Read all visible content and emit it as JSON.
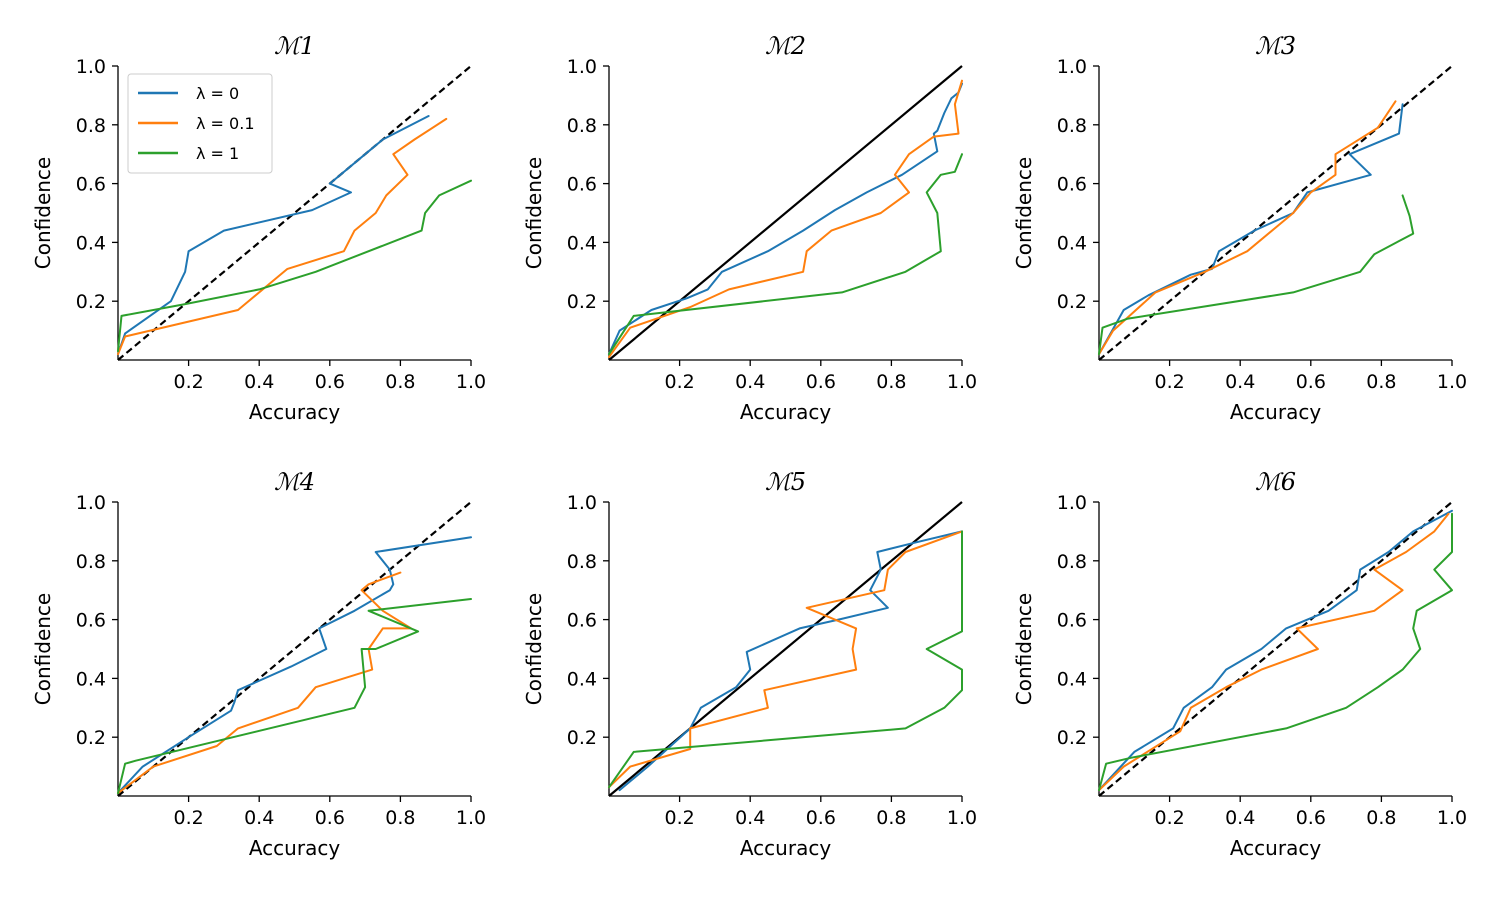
{
  "figure": {
    "type": "calibration-plot-grid",
    "rows": 2,
    "cols": 3
  },
  "legend": {
    "panel": 0,
    "placement": "upper-left",
    "entries": [
      {
        "label": "λ = 0",
        "color": "#1f77b4"
      },
      {
        "label": "λ = 0.1",
        "color": "#ff7f0e"
      },
      {
        "label": "λ = 1",
        "color": "#2ca02c"
      }
    ]
  },
  "chart_data": [
    {
      "type": "line",
      "title": "ℳ1",
      "xlabel": "Accuracy",
      "ylabel": "Confidence",
      "xlim": [
        0,
        1
      ],
      "ylim": [
        0,
        1
      ],
      "xticks": [
        "0.2",
        "0.4",
        "0.6",
        "0.8",
        "1.0"
      ],
      "yticks": [
        "0.2",
        "0.4",
        "0.6",
        "0.8",
        "1.0"
      ],
      "reference": {
        "style": "dashed",
        "x": [
          0,
          1
        ],
        "y": [
          0,
          1
        ]
      },
      "series": [
        {
          "name": "λ = 0",
          "color": "#1f77b4",
          "x": [
            0,
            0.02,
            0.15,
            0.19,
            0.2,
            0.3,
            0.55,
            0.66,
            0.6,
            0.71,
            0.75,
            0.88
          ],
          "y": [
            0.02,
            0.09,
            0.2,
            0.3,
            0.37,
            0.44,
            0.51,
            0.57,
            0.6,
            0.71,
            0.75,
            0.83
          ]
        },
        {
          "name": "λ = 0.1",
          "color": "#ff7f0e",
          "x": [
            0,
            0.02,
            0.34,
            0.48,
            0.64,
            0.67,
            0.73,
            0.76,
            0.82,
            0.78,
            0.84,
            0.93
          ],
          "y": [
            0.02,
            0.08,
            0.17,
            0.31,
            0.37,
            0.44,
            0.5,
            0.56,
            0.63,
            0.7,
            0.75,
            0.82
          ]
        },
        {
          "name": "λ = 1",
          "color": "#2ca02c",
          "x": [
            0,
            0.01,
            0.19,
            0.4,
            0.56,
            0.86,
            0.87,
            0.91,
            1.0
          ],
          "y": [
            0.03,
            0.15,
            0.19,
            0.24,
            0.3,
            0.44,
            0.5,
            0.56,
            0.61
          ]
        }
      ]
    },
    {
      "type": "line",
      "title": "ℳ2",
      "xlabel": "Accuracy",
      "ylabel": "Confidence",
      "xlim": [
        0,
        1
      ],
      "ylim": [
        0,
        1
      ],
      "xticks": [
        "0.2",
        "0.4",
        "0.6",
        "0.8",
        "1.0"
      ],
      "yticks": [
        "0.2",
        "0.4",
        "0.6",
        "0.8",
        "1.0"
      ],
      "reference": {
        "style": "solid",
        "x": [
          0,
          1
        ],
        "y": [
          0,
          1
        ]
      },
      "series": [
        {
          "name": "λ = 0",
          "color": "#1f77b4",
          "x": [
            0,
            0.03,
            0.12,
            0.22,
            0.28,
            0.32,
            0.45,
            0.55,
            0.64,
            0.73,
            0.83,
            0.93,
            0.92,
            0.93,
            0.95,
            0.97,
            0.99,
            1.0
          ],
          "y": [
            0.02,
            0.1,
            0.17,
            0.21,
            0.24,
            0.3,
            0.37,
            0.44,
            0.51,
            0.57,
            0.63,
            0.71,
            0.77,
            0.78,
            0.84,
            0.89,
            0.91,
            0.94
          ]
        },
        {
          "name": "λ = 0.1",
          "color": "#ff7f0e",
          "x": [
            0,
            0.06,
            0.23,
            0.34,
            0.55,
            0.56,
            0.63,
            0.77,
            0.85,
            0.81,
            0.85,
            0.92,
            0.99,
            0.98,
            1.0
          ],
          "y": [
            0.01,
            0.11,
            0.18,
            0.24,
            0.3,
            0.37,
            0.44,
            0.5,
            0.57,
            0.63,
            0.7,
            0.76,
            0.77,
            0.87,
            0.95
          ]
        },
        {
          "name": "λ = 1",
          "color": "#2ca02c",
          "x": [
            0,
            0.07,
            0.66,
            0.84,
            0.94,
            0.93,
            0.9,
            0.94,
            0.98,
            1.0
          ],
          "y": [
            0.02,
            0.15,
            0.23,
            0.3,
            0.37,
            0.5,
            0.57,
            0.63,
            0.64,
            0.7
          ]
        }
      ]
    },
    {
      "type": "line",
      "title": "ℳ3",
      "xlabel": "Accuracy",
      "ylabel": "Confidence",
      "xlim": [
        0,
        1
      ],
      "ylim": [
        0,
        1
      ],
      "xticks": [
        "0.2",
        "0.4",
        "0.6",
        "0.8",
        "1.0"
      ],
      "yticks": [
        "0.2",
        "0.4",
        "0.6",
        "0.8",
        "1.0"
      ],
      "reference": {
        "style": "dashed",
        "x": [
          0,
          1
        ],
        "y": [
          0,
          1
        ]
      },
      "series": [
        {
          "name": "λ = 0",
          "color": "#1f77b4",
          "x": [
            0,
            0.07,
            0.14,
            0.26,
            0.32,
            0.34,
            0.44,
            0.55,
            0.59,
            0.77,
            0.71,
            0.85,
            0.86
          ],
          "y": [
            0.02,
            0.17,
            0.22,
            0.29,
            0.31,
            0.37,
            0.44,
            0.5,
            0.57,
            0.63,
            0.7,
            0.77,
            0.87
          ]
        },
        {
          "name": "λ = 0.1",
          "color": "#ff7f0e",
          "x": [
            0,
            0.04,
            0.16,
            0.3,
            0.42,
            0.55,
            0.6,
            0.67,
            0.67,
            0.79,
            0.84
          ],
          "y": [
            0.02,
            0.1,
            0.23,
            0.3,
            0.37,
            0.5,
            0.57,
            0.63,
            0.7,
            0.79,
            0.88
          ]
        },
        {
          "name": "λ = 1",
          "color": "#2ca02c",
          "x": [
            0,
            0.01,
            0.08,
            0.55,
            0.74,
            0.78,
            0.89,
            0.88,
            0.86
          ],
          "y": [
            0.02,
            0.11,
            0.14,
            0.23,
            0.3,
            0.36,
            0.43,
            0.49,
            0.56
          ]
        }
      ]
    },
    {
      "type": "line",
      "title": "ℳ4",
      "xlabel": "Accuracy",
      "ylabel": "Confidence",
      "xlim": [
        0,
        1
      ],
      "ylim": [
        0,
        1
      ],
      "xticks": [
        "0.2",
        "0.4",
        "0.6",
        "0.8",
        "1.0"
      ],
      "yticks": [
        "0.2",
        "0.4",
        "0.6",
        "0.8",
        "1.0"
      ],
      "reference": {
        "style": "dashed",
        "x": [
          0,
          1
        ],
        "y": [
          0,
          1
        ]
      },
      "series": [
        {
          "name": "λ = 0",
          "color": "#1f77b4",
          "x": [
            0,
            0.07,
            0.2,
            0.32,
            0.33,
            0.34,
            0.49,
            0.59,
            0.57,
            0.67,
            0.77,
            0.78,
            0.77,
            0.73,
            1.0
          ],
          "y": [
            0.01,
            0.1,
            0.2,
            0.29,
            0.32,
            0.36,
            0.44,
            0.5,
            0.57,
            0.63,
            0.7,
            0.72,
            0.77,
            0.83,
            0.88
          ]
        },
        {
          "name": "λ = 0.1",
          "color": "#ff7f0e",
          "x": [
            0,
            0.1,
            0.28,
            0.34,
            0.51,
            0.56,
            0.72,
            0.71,
            0.75,
            0.83,
            0.75,
            0.69,
            0.71,
            0.8
          ],
          "y": [
            0.01,
            0.1,
            0.17,
            0.23,
            0.3,
            0.37,
            0.43,
            0.5,
            0.57,
            0.57,
            0.63,
            0.7,
            0.72,
            0.76
          ]
        },
        {
          "name": "λ = 1",
          "color": "#2ca02c",
          "x": [
            0,
            0.02,
            0.05,
            0.67,
            0.7,
            0.69,
            0.73,
            0.85,
            0.71,
            1.0
          ],
          "y": [
            0.01,
            0.11,
            0.12,
            0.3,
            0.37,
            0.5,
            0.5,
            0.56,
            0.63,
            0.67
          ]
        }
      ]
    },
    {
      "type": "line",
      "title": "ℳ5",
      "xlabel": "Accuracy",
      "ylabel": "Confidence",
      "xlim": [
        0,
        1
      ],
      "ylim": [
        0,
        1
      ],
      "xticks": [
        "0.2",
        "0.4",
        "0.6",
        "0.8",
        "1.0"
      ],
      "yticks": [
        "0.2",
        "0.4",
        "0.6",
        "0.8",
        "1.0"
      ],
      "reference": {
        "style": "solid",
        "x": [
          0,
          1
        ],
        "y": [
          0,
          1
        ]
      },
      "series": [
        {
          "name": "λ = 0",
          "color": "#1f77b4",
          "x": [
            0.03,
            0.11,
            0.23,
            0.26,
            0.36,
            0.4,
            0.39,
            0.54,
            0.65,
            0.79,
            0.74,
            0.77,
            0.76,
            0.86,
            1.0
          ],
          "y": [
            0.02,
            0.1,
            0.23,
            0.3,
            0.37,
            0.43,
            0.49,
            0.57,
            0.6,
            0.64,
            0.7,
            0.77,
            0.83,
            0.86,
            0.9
          ]
        },
        {
          "name": "λ = 0.1",
          "color": "#ff7f0e",
          "x": [
            0,
            0.06,
            0.23,
            0.23,
            0.45,
            0.44,
            0.7,
            0.69,
            0.7,
            0.56,
            0.78,
            0.79,
            0.84,
            1.0
          ],
          "y": [
            0.03,
            0.1,
            0.16,
            0.23,
            0.3,
            0.36,
            0.43,
            0.5,
            0.57,
            0.64,
            0.7,
            0.77,
            0.83,
            0.9
          ]
        },
        {
          "name": "λ = 1",
          "color": "#2ca02c",
          "x": [
            0,
            0.07,
            0.84,
            0.95,
            1.0,
            1.0,
            0.9,
            1.0,
            1.0
          ],
          "y": [
            0.03,
            0.15,
            0.23,
            0.3,
            0.36,
            0.43,
            0.5,
            0.56,
            0.9
          ]
        }
      ]
    },
    {
      "type": "line",
      "title": "ℳ6",
      "xlabel": "Accuracy",
      "ylabel": "Confidence",
      "xlim": [
        0,
        1
      ],
      "ylim": [
        0,
        1
      ],
      "xticks": [
        "0.2",
        "0.4",
        "0.6",
        "0.8",
        "1.0"
      ],
      "yticks": [
        "0.2",
        "0.4",
        "0.6",
        "0.8",
        "1.0"
      ],
      "reference": {
        "style": "dashed",
        "x": [
          0,
          1
        ],
        "y": [
          0,
          1
        ]
      },
      "series": [
        {
          "name": "λ = 0",
          "color": "#1f77b4",
          "x": [
            0,
            0.1,
            0.21,
            0.24,
            0.32,
            0.36,
            0.46,
            0.53,
            0.65,
            0.73,
            0.74,
            0.82,
            0.89,
            1.0
          ],
          "y": [
            0.02,
            0.15,
            0.23,
            0.3,
            0.37,
            0.43,
            0.5,
            0.57,
            0.63,
            0.7,
            0.77,
            0.83,
            0.9,
            0.97
          ]
        },
        {
          "name": "λ = 0.1",
          "color": "#ff7f0e",
          "x": [
            0,
            0.07,
            0.23,
            0.26,
            0.36,
            0.46,
            0.62,
            0.56,
            0.78,
            0.86,
            0.78,
            0.87,
            0.95,
            0.99
          ],
          "y": [
            0.02,
            0.1,
            0.22,
            0.3,
            0.37,
            0.43,
            0.5,
            0.57,
            0.63,
            0.7,
            0.77,
            0.83,
            0.9,
            0.96
          ]
        },
        {
          "name": "λ = 1",
          "color": "#2ca02c",
          "x": [
            0,
            0.02,
            0.09,
            0.53,
            0.7,
            0.79,
            0.86,
            0.91,
            0.89,
            0.9,
            1.0,
            0.95,
            1.0,
            1.0
          ],
          "y": [
            0.02,
            0.11,
            0.13,
            0.23,
            0.3,
            0.37,
            0.43,
            0.5,
            0.57,
            0.63,
            0.7,
            0.77,
            0.83,
            0.96
          ]
        }
      ]
    }
  ]
}
